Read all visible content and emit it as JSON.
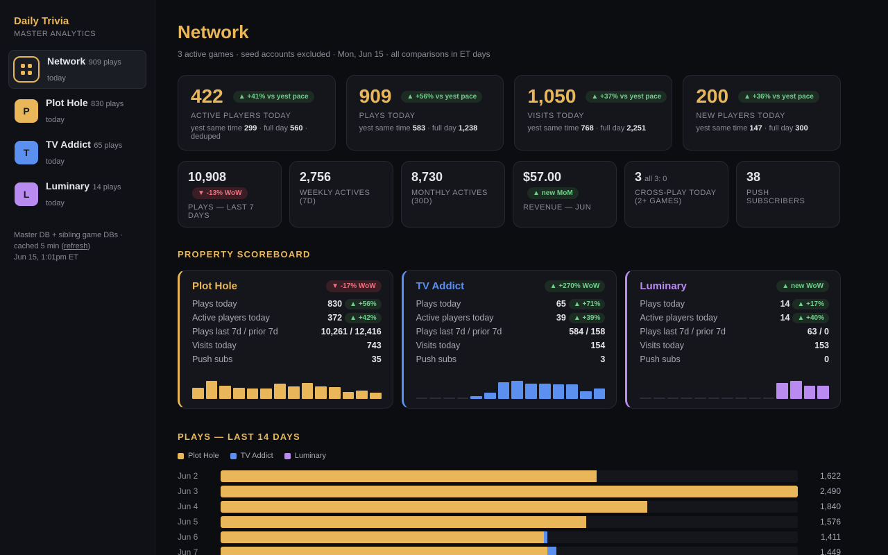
{
  "colors": {
    "accent": "#e9b75a",
    "plot_hole": "#e9b75a",
    "tv_addict": "#5b8ff0",
    "luminary": "#b98af0",
    "up": "#6fd08c",
    "down": "#f07180"
  },
  "sidebar": {
    "brand": {
      "title": "Daily Trivia",
      "subtitle": "MASTER ANALYTICS"
    },
    "items": [
      {
        "name": "Network",
        "count": "909 plays",
        "today": "today",
        "icon": "grid-icon"
      },
      {
        "name": "Plot Hole",
        "count": "830 plays",
        "today": "today",
        "letter": "P"
      },
      {
        "name": "TV Addict",
        "count": "65 plays",
        "today": "today",
        "letter": "T"
      },
      {
        "name": "Luminary",
        "count": "14 plays",
        "today": "today",
        "letter": "L"
      }
    ],
    "footer": {
      "line1": "Master DB + sibling game DBs ·",
      "line2_pre": "cached 5 min (",
      "refresh": "refresh",
      "line2_post": ")",
      "line3": "Jun 15, 1:01pm ET"
    }
  },
  "header": {
    "title": "Network",
    "subtitle": "3 active games · seed accounts excluded · Mon, Jun 15 · all comparisons in ET days"
  },
  "kpis": [
    {
      "value": "422",
      "badge": "▲ +41% vs yest pace",
      "label": "ACTIVE PLAYERS TODAY",
      "foot_a": "yest same time ",
      "foot_b": "299",
      "foot_c": " · full day ",
      "foot_d": "560",
      "foot_e": " · deduped"
    },
    {
      "value": "909",
      "badge": "▲ +56% vs yest pace",
      "label": "PLAYS TODAY",
      "foot_a": "yest same time ",
      "foot_b": "583",
      "foot_c": " · full day ",
      "foot_d": "1,238",
      "foot_e": ""
    },
    {
      "value": "1,050",
      "badge": "▲ +37% vs yest pace",
      "label": "VISITS TODAY",
      "foot_a": "yest same time ",
      "foot_b": "768",
      "foot_c": " · full day ",
      "foot_d": "2,251",
      "foot_e": ""
    },
    {
      "value": "200",
      "badge": "▲ +36% vs yest pace",
      "label": "NEW PLAYERS TODAY",
      "foot_a": "yest same time ",
      "foot_b": "147",
      "foot_c": " · full day ",
      "foot_d": "300",
      "foot_e": ""
    }
  ],
  "secondary": [
    {
      "value": "10,908",
      "extra": "",
      "badge": "▼ -13% WoW",
      "badge_dir": "down",
      "label": "PLAYS — LAST 7 DAYS"
    },
    {
      "value": "2,756",
      "extra": "",
      "badge": "",
      "badge_dir": "",
      "label": "WEEKLY ACTIVES (7D)"
    },
    {
      "value": "8,730",
      "extra": "",
      "badge": "",
      "badge_dir": "",
      "label": "MONTHLY ACTIVES (30D)"
    },
    {
      "value": "$57.00",
      "extra": "",
      "badge": "▲ new MoM",
      "badge_dir": "up",
      "label": "REVENUE — JUN"
    },
    {
      "value": "3",
      "extra": "all 3: 0",
      "badge": "",
      "badge_dir": "",
      "label": "CROSS-PLAY TODAY (2+ GAMES)"
    },
    {
      "value": "38",
      "extra": "",
      "badge": "",
      "badge_dir": "",
      "label": "PUSH SUBSCRIBERS"
    }
  ],
  "scoreboard": {
    "title": "PROPERTY SCOREBOARD",
    "row_labels": {
      "plays_today": "Plays today",
      "active_today": "Active players today",
      "plays_7d": "Plays last 7d / prior 7d",
      "visits_today": "Visits today",
      "push_subs": "Push subs"
    },
    "games": [
      {
        "name": "Plot Hole",
        "color": "#e9b75a",
        "wow": "▼ -17% WoW",
        "wow_dir": "down",
        "plays_today": "830",
        "plays_badge": "▲ +56%",
        "active_today": "372",
        "active_badge": "▲ +42%",
        "plays_7d": "10,261 / 12,416",
        "visits_today": "743",
        "push_subs": "35",
        "spark": [
          0.62,
          1.0,
          0.72,
          0.6,
          0.56,
          0.56,
          0.84,
          0.7,
          0.88,
          0.7,
          0.66,
          0.38,
          0.46,
          0.34
        ]
      },
      {
        "name": "TV Addict",
        "color": "#5b8ff0",
        "wow": "▲ +270% WoW",
        "wow_dir": "up",
        "plays_today": "65",
        "plays_badge": "▲ +71%",
        "active_today": "39",
        "active_badge": "▲ +39%",
        "plays_7d": "584 / 158",
        "visits_today": "154",
        "push_subs": "3",
        "spark": [
          0.04,
          0.04,
          0.04,
          0.04,
          0.14,
          0.34,
          0.92,
          1.0,
          0.84,
          0.84,
          0.8,
          0.8,
          0.44,
          0.58
        ]
      },
      {
        "name": "Luminary",
        "color": "#b98af0",
        "wow": "▲ new WoW",
        "wow_dir": "up",
        "plays_today": "14",
        "plays_badge": "▲ +17%",
        "active_today": "14",
        "active_badge": "▲ +40%",
        "plays_7d": "63 / 0",
        "visits_today": "153",
        "push_subs": "0",
        "spark": [
          0.04,
          0.04,
          0.04,
          0.04,
          0.04,
          0.04,
          0.04,
          0.04,
          0.04,
          0.04,
          0.88,
          1.0,
          0.72,
          0.72
        ]
      }
    ]
  },
  "chart_data": {
    "type": "bar",
    "title": "PLAYS — LAST 14 DAYS",
    "orientation": "horizontal",
    "stacked": true,
    "categories": [
      "Jun 2",
      "Jun 3",
      "Jun 4",
      "Jun 5",
      "Jun 6",
      "Jun 7"
    ],
    "series": [
      {
        "name": "Plot Hole",
        "color": "#e9b75a",
        "values": [
          1622,
          2490,
          1840,
          1576,
          1395,
          1411
        ]
      },
      {
        "name": "TV Addict",
        "color": "#5b8ff0",
        "values": [
          0,
          0,
          0,
          0,
          16,
          38
        ]
      },
      {
        "name": "Luminary",
        "color": "#b98af0",
        "values": [
          0,
          0,
          0,
          0,
          0,
          0
        ]
      }
    ],
    "totals": [
      "1,622",
      "2,490",
      "1,840",
      "1,576",
      "1,411",
      "1,449"
    ],
    "xlim": [
      0,
      2490
    ]
  }
}
